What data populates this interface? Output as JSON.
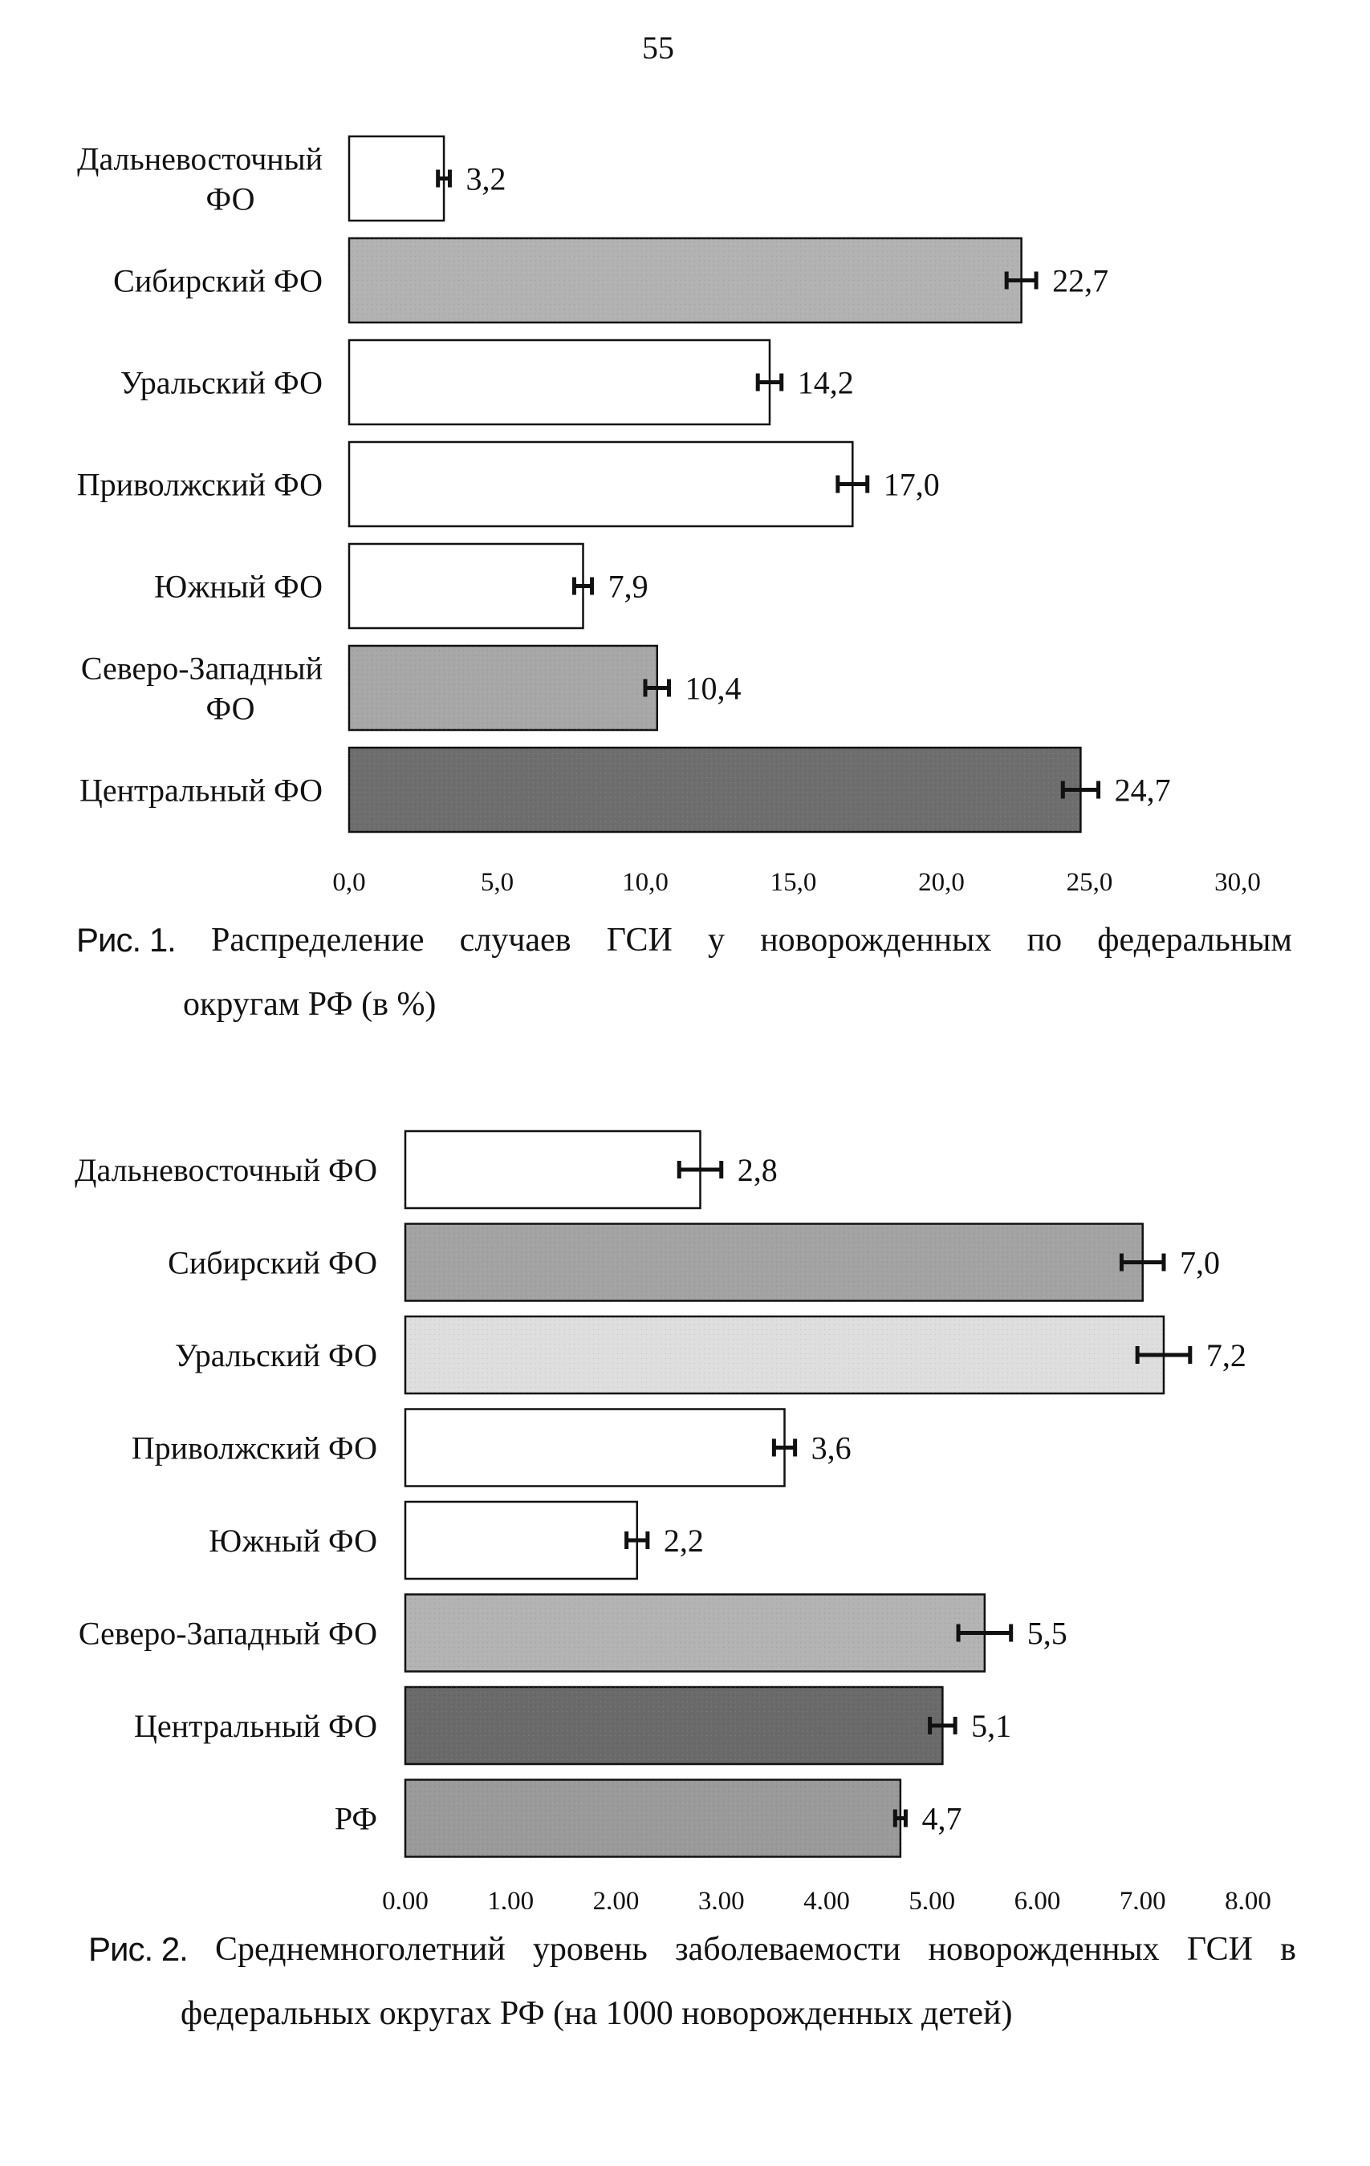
{
  "page_number": "55",
  "figures": [
    {
      "caption": {
        "label": "Рис. 1.",
        "line1_words": [
          "Распределение",
          "случаев",
          "ГСИ",
          "у",
          "новорожденных",
          "по",
          "федеральным"
        ],
        "line2": "округам РФ (в %)"
      }
    },
    {
      "caption": {
        "label": "Рис. 2.",
        "line1_words": [
          "Среднемноголетний",
          "уровень",
          "заболеваемости",
          "новорожденных",
          "ГСИ",
          "в"
        ],
        "line2": "федеральных округах РФ (на 1000 новорожденных детей)"
      }
    }
  ],
  "chart_data": [
    {
      "type": "bar",
      "orientation": "horizontal",
      "categories": [
        [
          "Дальневосточный",
          "ФО"
        ],
        [
          "Сибирский ФО"
        ],
        [
          "Уральский ФО"
        ],
        [
          "Приволжский ФО"
        ],
        [
          "Южный ФО"
        ],
        [
          "Северо-Западный",
          "ФО"
        ],
        [
          "Центральный ФО"
        ]
      ],
      "values": [
        3.2,
        22.7,
        14.2,
        17.0,
        7.9,
        10.4,
        24.7
      ],
      "value_labels": [
        "3,2",
        "22,7",
        "14,2",
        "17,0",
        "7,9",
        "10,4",
        "24,7"
      ],
      "error": [
        0.2,
        0.5,
        0.4,
        0.5,
        0.3,
        0.4,
        0.6
      ],
      "bar_colors": [
        "#ffffff",
        "#b2b2b2",
        "#ffffff",
        "#ffffff",
        "#ffffff",
        "#a7a7a7",
        "#6e6e6e"
      ],
      "xlim": [
        0,
        30
      ],
      "x_ticks": [
        0,
        5,
        10,
        15,
        20,
        25,
        30
      ],
      "x_tick_labels": [
        "0,0",
        "5,0",
        "10,0",
        "15,0",
        "20,0",
        "25,0",
        "30,0"
      ],
      "grid": false,
      "legend": "none"
    },
    {
      "type": "bar",
      "orientation": "horizontal",
      "categories": [
        [
          "Дальневосточный ФО"
        ],
        [
          "Сибирский ФО"
        ],
        [
          "Уральский ФО"
        ],
        [
          "Приволжский ФО"
        ],
        [
          "Южный ФО"
        ],
        [
          "Северо-Западный ФО"
        ],
        [
          "Центральный ФО"
        ],
        [
          "РФ"
        ]
      ],
      "values": [
        2.8,
        7.0,
        7.2,
        3.6,
        2.2,
        5.5,
        5.1,
        4.7
      ],
      "value_labels": [
        "2,8",
        "7,0",
        "7,2",
        "3,6",
        "2,2",
        "5,5",
        "5,1",
        "4,7"
      ],
      "error": [
        0.2,
        0.2,
        0.25,
        0.1,
        0.1,
        0.25,
        0.12,
        0.05
      ],
      "bar_colors": [
        "#ffffff",
        "#a3a3a3",
        "#dedede",
        "#ffffff",
        "#ffffff",
        "#b3b3b3",
        "#6a6a6a",
        "#9a9a9a"
      ],
      "xlim": [
        0,
        8
      ],
      "x_ticks": [
        0,
        1,
        2,
        3,
        4,
        5,
        6,
        7,
        8
      ],
      "x_tick_labels": [
        "0,00",
        "1,00",
        "2,00",
        "3,00",
        "4,00",
        "5,00",
        "6,00",
        "7,00",
        "8,00"
      ],
      "grid": false,
      "legend": "none"
    }
  ]
}
